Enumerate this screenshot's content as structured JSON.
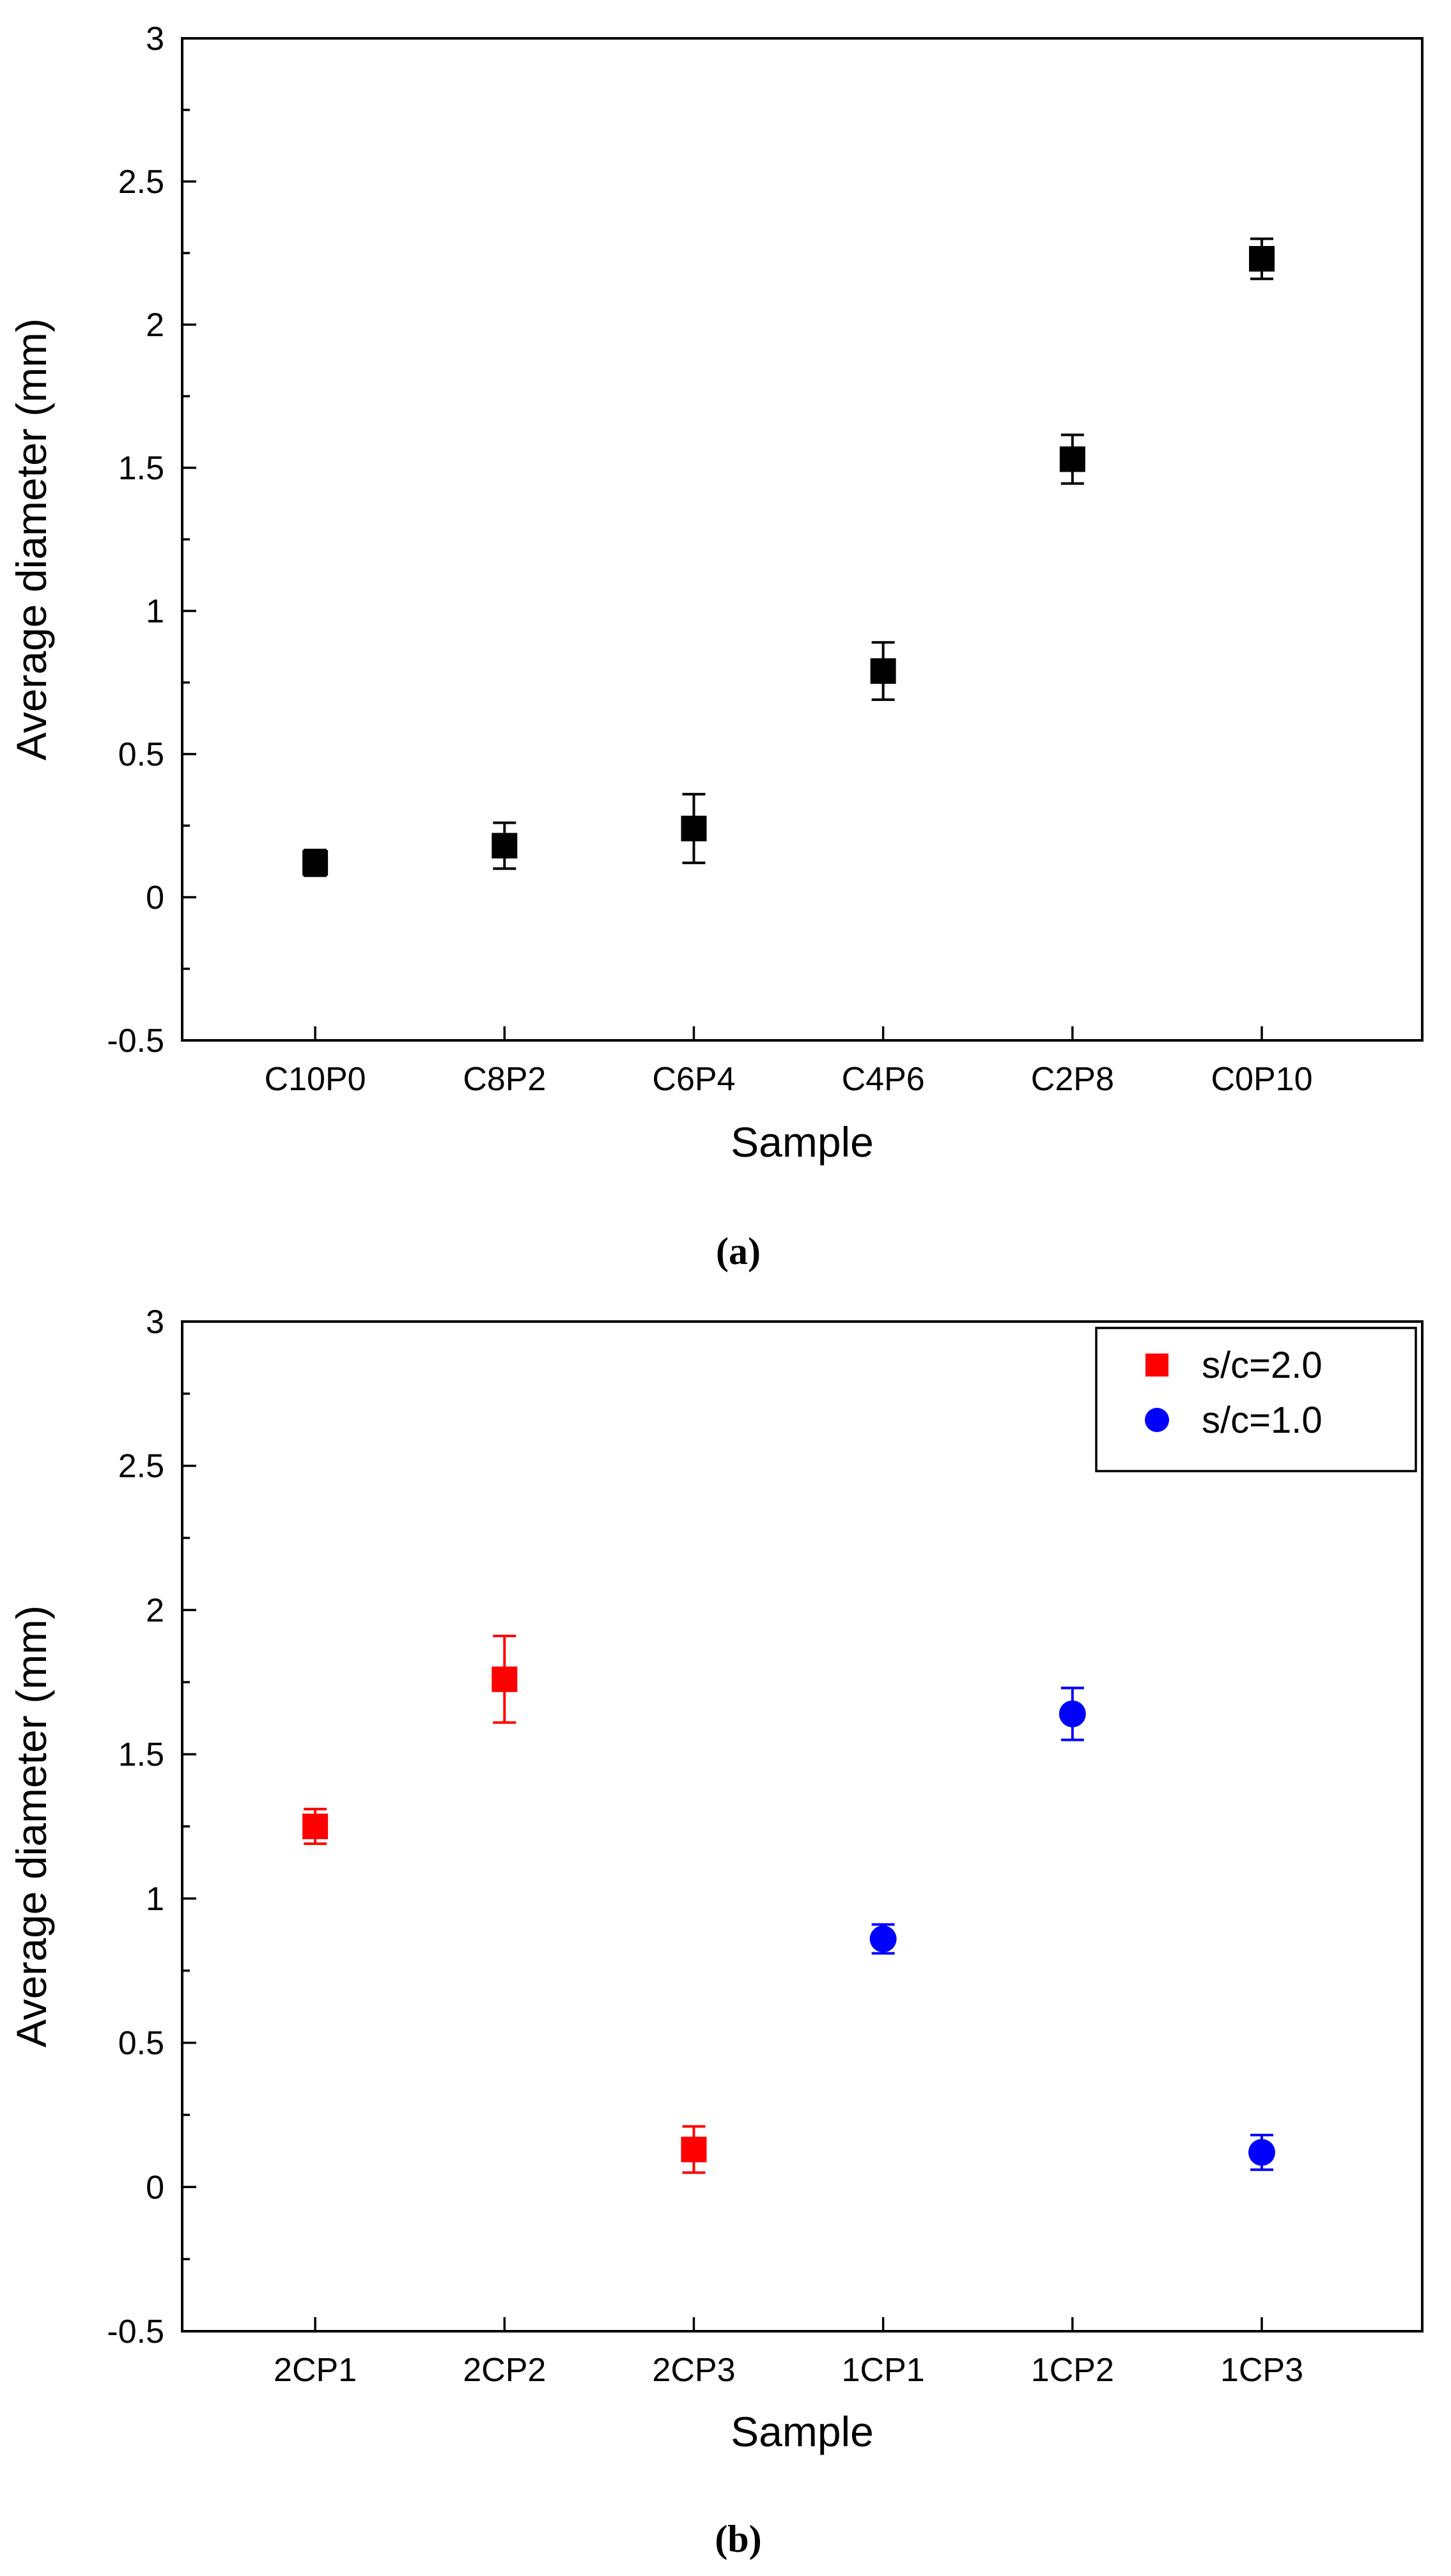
{
  "chart_data": [
    {
      "type": "scatter",
      "panel": "a",
      "title": "",
      "xlabel": "Sample",
      "ylabel": "Average diameter (mm)",
      "categories": [
        "C10P0",
        "C8P2",
        "C6P4",
        "C4P6",
        "C2P8",
        "C0P10"
      ],
      "ylim": [
        -0.5,
        3
      ],
      "yticks": [
        "-0.5",
        "0",
        "0.5",
        "1",
        "1.5",
        "2",
        "2.5",
        "3"
      ],
      "series": [
        {
          "name": "",
          "color": "#000000",
          "marker": "square",
          "values": [
            0.12,
            0.18,
            0.24,
            0.79,
            1.53,
            2.23
          ],
          "errors": [
            0.045,
            0.08,
            0.12,
            0.1,
            0.085,
            0.07
          ]
        }
      ],
      "caption": "(a)"
    },
    {
      "type": "scatter",
      "panel": "b",
      "title": "",
      "xlabel": "Sample",
      "ylabel": "Average diameter (mm)",
      "categories": [
        "2CP1",
        "2CP2",
        "2CP3",
        "1CP1",
        "1CP2",
        "1CP3"
      ],
      "ylim": [
        -0.5,
        3
      ],
      "yticks": [
        "-0.5",
        "0",
        "0.5",
        "1",
        "1.5",
        "2",
        "2.5",
        "3"
      ],
      "legend_position": "top-right",
      "series": [
        {
          "name": "s/c=2.0",
          "color": "#ff0000",
          "marker": "square",
          "x_indices": [
            0,
            1,
            2
          ],
          "values": [
            1.25,
            1.76,
            0.13
          ],
          "errors": [
            0.06,
            0.15,
            0.08
          ]
        },
        {
          "name": "s/c=1.0",
          "color": "#0000ff",
          "marker": "circle",
          "x_indices": [
            3,
            4,
            5
          ],
          "values": [
            0.86,
            1.64,
            0.12
          ],
          "errors": [
            0.05,
            0.09,
            0.06
          ]
        }
      ],
      "caption": "(b)"
    }
  ]
}
